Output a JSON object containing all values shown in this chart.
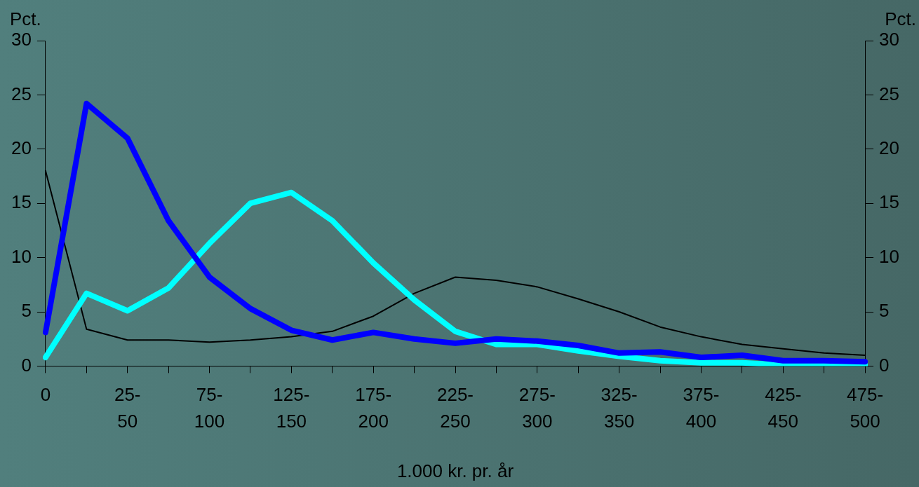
{
  "chart_data": {
    "type": "line",
    "xlabel": "1.000 kr. pr. år",
    "ylabel": "Pct.",
    "y2label": "Pct.",
    "categories": [
      "0",
      null,
      "25-50",
      null,
      "75-100",
      null,
      "125-150",
      null,
      "175-200",
      null,
      "225-250",
      null,
      "275-300",
      null,
      "325-350",
      null,
      "375-400",
      null,
      "425-450",
      null,
      "475-500"
    ],
    "series": [
      {
        "color": "#0000ff",
        "values": [
          3.1,
          24.2,
          21.0,
          13.4,
          8.2,
          5.3,
          3.3,
          2.4,
          3.1,
          2.5,
          2.1,
          2.5,
          2.3,
          1.9,
          1.2,
          1.3,
          0.8,
          1.0,
          0.5,
          0.5,
          0.4
        ]
      },
      {
        "color": "#00ffff",
        "values": [
          0.8,
          6.7,
          5.1,
          7.2,
          11.3,
          15.0,
          16.0,
          13.4,
          9.5,
          6.1,
          3.2,
          2.0,
          2.0,
          1.4,
          0.9,
          0.5,
          0.3,
          0.3,
          0.1,
          0.1,
          0.1
        ]
      },
      {
        "color": "#000000",
        "values": [
          18.0,
          3.4,
          2.4,
          2.4,
          2.2,
          2.4,
          2.7,
          3.2,
          4.6,
          6.7,
          8.2,
          7.9,
          7.3,
          6.2,
          5.0,
          3.6,
          2.7,
          2.0,
          1.6,
          1.2,
          1.0
        ]
      }
    ],
    "ylim": [
      0,
      30
    ],
    "yticks": [
      0,
      5,
      10,
      15,
      20,
      25,
      30
    ],
    "y2lim": [
      0,
      30
    ],
    "y2ticks": [
      0,
      5,
      10,
      15,
      20,
      25,
      30
    ],
    "grid": false,
    "legend": false,
    "marker": "none",
    "line_style": "solid"
  }
}
